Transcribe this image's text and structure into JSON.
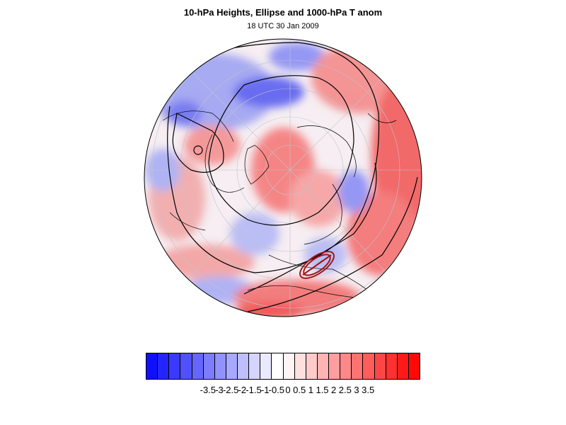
{
  "title": "10-hPa Heights, Ellipse and 1000-hPa T anom",
  "subtitle": "18 UTC 30 Jan 2009",
  "colorbar": {
    "colors": [
      "#1010ff",
      "#2424ff",
      "#3a3aff",
      "#5050ff",
      "#6666ff",
      "#7c7cff",
      "#9292ff",
      "#a8a8ff",
      "#bebeff",
      "#d4d4ff",
      "#eaeaff",
      "#ffffff",
      "#fff4f4",
      "#ffe0e0",
      "#ffcaca",
      "#ffb4b4",
      "#ff9e9e",
      "#ff8888",
      "#ff7272",
      "#ff5c5c",
      "#ff4646",
      "#ff3030",
      "#ff1a1a",
      "#ff0808"
    ],
    "labels": [
      "-3.5",
      "-3",
      "-2.5",
      "-2",
      "-1.5",
      "-1",
      "-0.5",
      "0",
      "0.5",
      "1",
      "1.5",
      "2",
      "2.5",
      "3",
      "3.5"
    ]
  }
}
